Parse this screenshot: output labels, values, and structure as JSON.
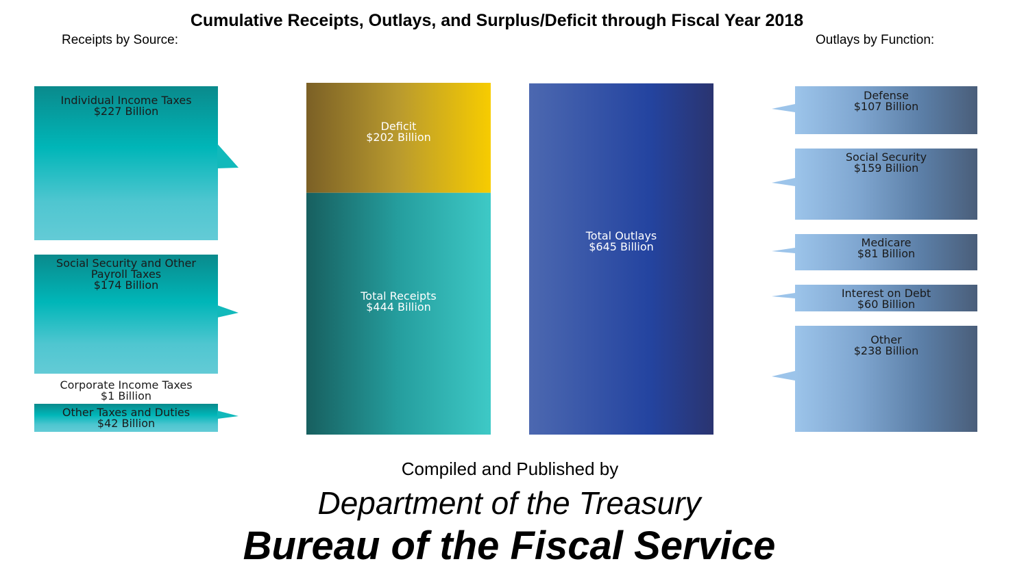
{
  "title": "Cumulative Receipts, Outlays, and Surplus/Deficit through Fiscal Year 2018",
  "receipts_heading": "Receipts by Source:",
  "outlays_heading": "Outlays by Function:",
  "chart_data": {
    "type": "bar",
    "title": "Cumulative Receipts, Outlays, and Surplus/Deficit through Fiscal Year 2018",
    "unit": "Billion",
    "stacked_bars": [
      {
        "name": "Receipts and Deficit",
        "segments": [
          {
            "label": "Total Receipts",
            "value": 444,
            "text": "$444 Billion",
            "color": "#2ab6b6"
          },
          {
            "label": "Deficit",
            "value": 202,
            "text": "$202 Billion",
            "color": "#c9a424"
          }
        ]
      },
      {
        "name": "Outlays",
        "segments": [
          {
            "label": "Total Outlays",
            "value": 645,
            "text": "$645 Billion",
            "color": "#3349a0"
          }
        ]
      }
    ],
    "receipts_by_source": [
      {
        "label": "Individual Income Taxes",
        "value": 227,
        "text": "$227 Billion"
      },
      {
        "label": "Social Security and Other Payroll Taxes",
        "label_lines": [
          "Social Security and Other",
          "Payroll Taxes"
        ],
        "value": 174,
        "text": "$174 Billion"
      },
      {
        "label": "Corporate Income Taxes",
        "value": 1,
        "text": "$1 Billion"
      },
      {
        "label": "Other Taxes and Duties",
        "value": 42,
        "text": "$42 Billion"
      }
    ],
    "outlays_by_function": [
      {
        "label": "Defense",
        "value": 107,
        "text": "$107 Billion"
      },
      {
        "label": "Social Security",
        "value": 159,
        "text": "$159 Billion"
      },
      {
        "label": "Medicare",
        "value": 81,
        "text": "$81 Billion"
      },
      {
        "label": "Interest on Debt",
        "value": 60,
        "text": "$60 Billion"
      },
      {
        "label": "Other",
        "value": 238,
        "text": "$238 Billion"
      }
    ]
  },
  "footer": {
    "compiled": "Compiled and Published by",
    "department": "Department of the Treasury",
    "bureau": "Bureau of the Fiscal Service"
  }
}
